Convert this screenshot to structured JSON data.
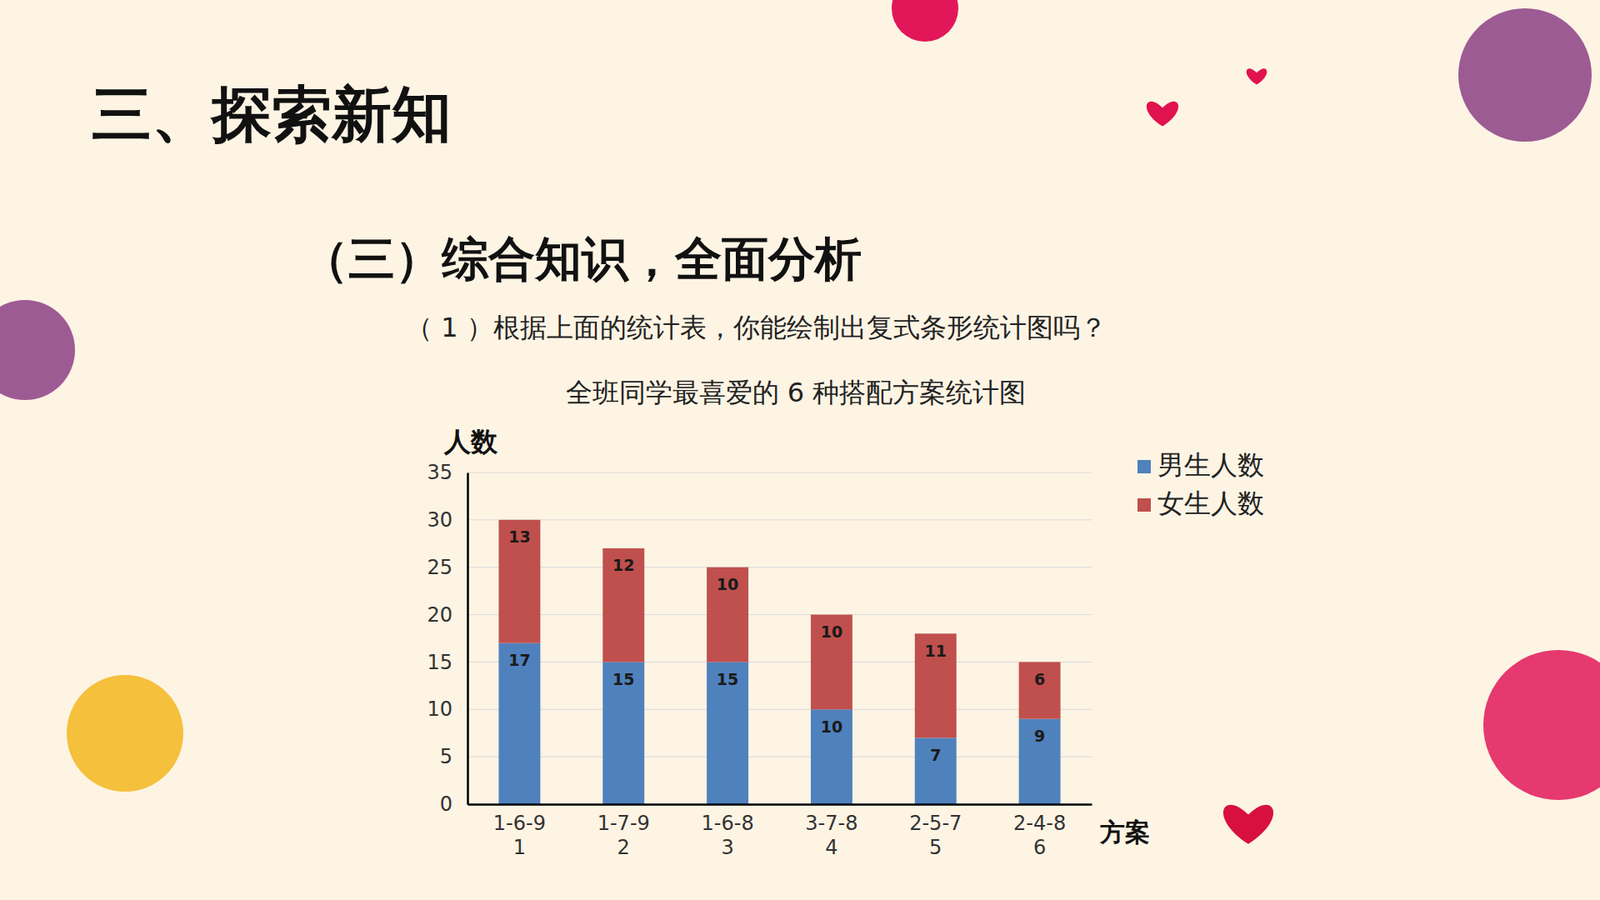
{
  "slide": {
    "heading": "三、探索新知",
    "subheading": "（三）综合知识，全面分析",
    "question": "（ 1 ）根据上面的统计表，你能绘制出复式条形统计图吗？"
  },
  "chart_data": {
    "type": "bar",
    "title": "全班同学最喜爱的 6 种搭配方案统计图",
    "y_label": "人数",
    "x_label": "方案",
    "categories": [
      "1-6-9\n1",
      "1-7-9\n2",
      "1-6-8\n3",
      "3-7-8\n4",
      "2-5-7\n5",
      "2-4-8\n6"
    ],
    "series": [
      {
        "name": "男生人数",
        "color": "#4f81bd",
        "values": [
          17,
          15,
          15,
          10,
          7,
          9
        ]
      },
      {
        "name": "女生人数",
        "color": "#c0504d",
        "values": [
          13,
          12,
          10,
          10,
          11,
          6
        ]
      }
    ],
    "stacked": true,
    "data_labels": true,
    "grid": true,
    "legend": "right",
    "ylim": [
      0,
      35
    ],
    "yticks": [
      0,
      5,
      10,
      15,
      20,
      25,
      30,
      35
    ]
  }
}
